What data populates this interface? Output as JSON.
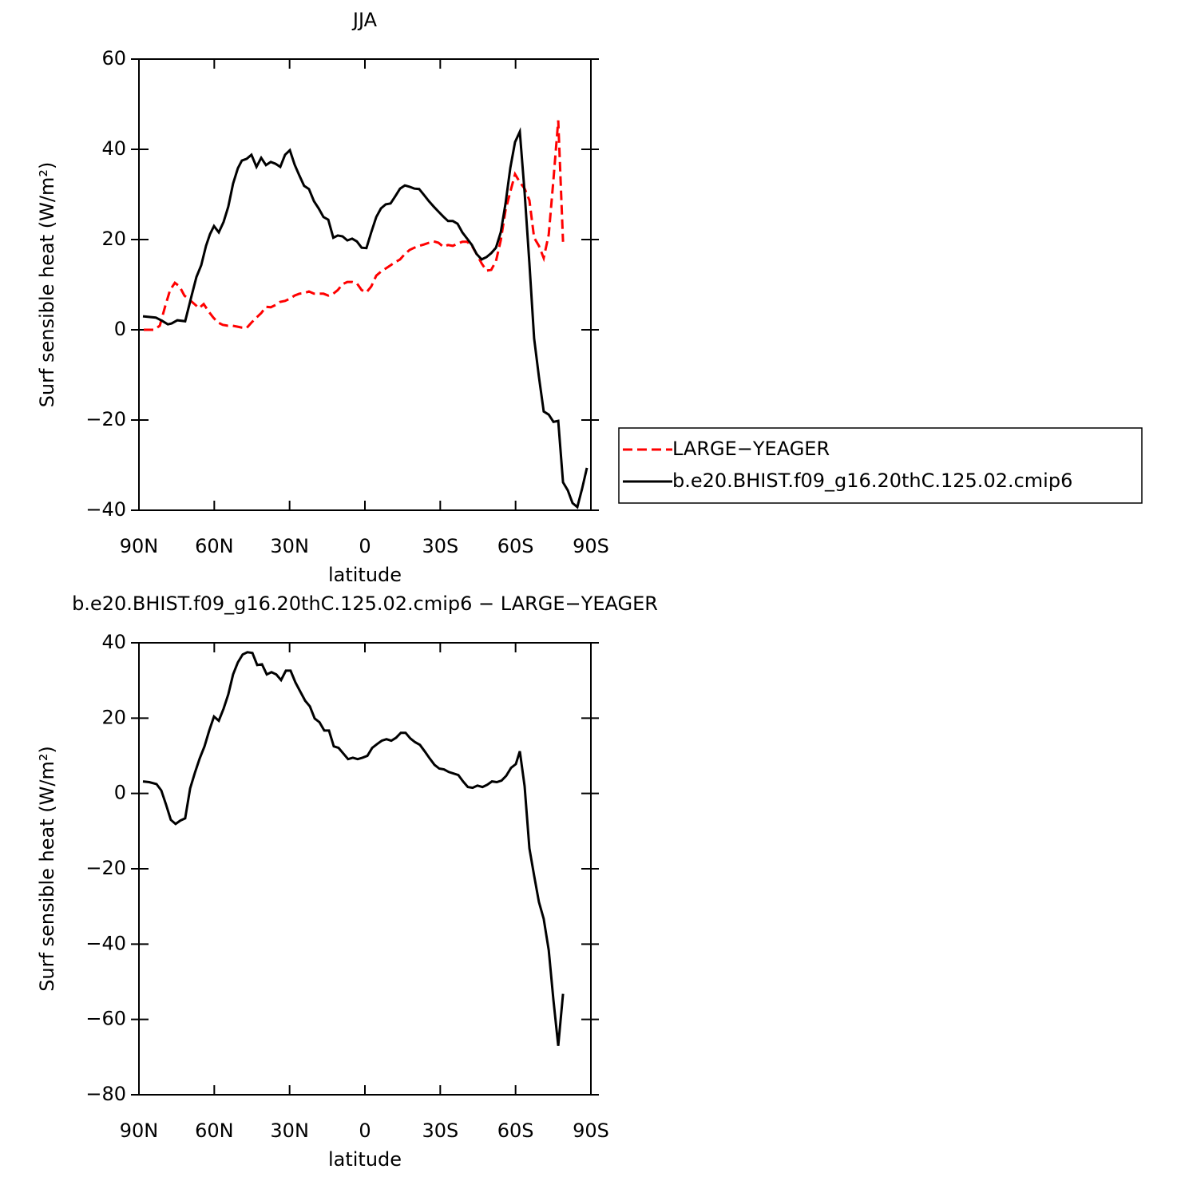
{
  "chart_data": [
    {
      "type": "line",
      "title": "JJA",
      "x_label": "latitude",
      "y_label": "Surf sensible heat (W/m²)",
      "xlim": [
        90,
        -90
      ],
      "ylim": [
        -40,
        60
      ],
      "xticks": [
        {
          "value": 90,
          "label": "90N"
        },
        {
          "value": 60,
          "label": "60N"
        },
        {
          "value": 30,
          "label": "30N"
        },
        0,
        {
          "value": -30,
          "label": "30S"
        },
        {
          "value": -60,
          "label": "60S"
        },
        {
          "value": -90,
          "label": "90S"
        }
      ],
      "yticks": [
        {
          "value": -40,
          "label": "−40"
        },
        {
          "value": -20,
          "label": "−20"
        },
        0,
        20,
        40,
        60
      ],
      "legend": "right",
      "series": [
        {
          "name": "LARGE−YEAGER",
          "color": "#ff0000",
          "dash": true,
          "x": [
            88.1,
            84,
            81.7,
            79.5,
            77.6,
            75.7,
            73.8,
            71.9,
            70,
            68.1,
            66.1,
            64.2,
            62.3,
            60.4,
            58.5,
            56.6,
            54.7,
            52.8,
            50.9,
            49,
            47.1,
            45.2,
            43.2,
            41.3,
            39.4,
            37.5,
            35.6,
            33.7,
            31.8,
            29.9,
            28,
            26.1,
            24.2,
            22.3,
            20.3,
            18.4,
            16.5,
            14.6,
            12.6,
            10.8,
            8.9,
            7,
            5.1,
            3.2,
            1.3,
            -0.6,
            -2.5,
            -4.5,
            -6.4,
            -8.3,
            -10.2,
            -12.1,
            -14,
            -15.9,
            -17.8,
            -19.7,
            -21.6,
            -23.5,
            -25.5,
            -27.4,
            -29.3,
            -31.2,
            -33.1,
            -35,
            -36.9,
            -38.8,
            -40.7,
            -42.6,
            -44.5,
            -46.5,
            -48.4,
            -50.3,
            -52.2,
            -54.1,
            -56,
            -57.9,
            -59.8,
            -61.7,
            -63.6,
            -65.5,
            -67.4,
            -69.3,
            -71.2,
            -73.2,
            -75.1,
            -77,
            -78.9
          ],
          "values": [
            0,
            0,
            0.9,
            5.3,
            8.8,
            10.4,
            9.6,
            7.6,
            6.7,
            5.8,
            4.8,
            5.7,
            4.1,
            2.7,
            1.6,
            1.1,
            0.9,
            0.9,
            0.7,
            0.5,
            0.4,
            1.6,
            2.7,
            3.7,
            5.1,
            5,
            5.5,
            6.2,
            6.4,
            6.9,
            7.6,
            8,
            8.1,
            8.5,
            8,
            8,
            8,
            7.6,
            8,
            8.8,
            10.1,
            10.6,
            10.6,
            10.3,
            8.8,
            8.3,
            9.6,
            12,
            12.9,
            13.6,
            14.3,
            15,
            15.6,
            16.8,
            17.7,
            18.2,
            18.6,
            18.9,
            19.3,
            19.6,
            19.3,
            18.4,
            18.8,
            18.6,
            19.1,
            19.5,
            19.5,
            18.6,
            16.8,
            14.7,
            13.1,
            13.3,
            15.2,
            19.8,
            26.5,
            30.6,
            34.5,
            32.7,
            31.3,
            28.7,
            20.4,
            18.6,
            15.9,
            21.1,
            33.3,
            46.4,
            19.5
          ]
        },
        {
          "name": "b.e20.BHIST.f09_g16.20thC.125.02.cmip6",
          "color": "#000000",
          "dash": false,
          "x": [
            88.4,
            83.3,
            80.8,
            78.5,
            77,
            74.7,
            71.6,
            69,
            67.1,
            65.2,
            63.3,
            61.7,
            60.1,
            58.2,
            56.3,
            54.4,
            52.5,
            50.6,
            49,
            47.1,
            45.2,
            43.2,
            41.3,
            39.4,
            37.5,
            35.6,
            33.7,
            31.8,
            29.9,
            28,
            26.1,
            24.2,
            22.3,
            20.3,
            18.4,
            16.5,
            14.6,
            12.6,
            10.8,
            8.9,
            7,
            5.1,
            3.2,
            1.3,
            -0.6,
            -2.5,
            -4.5,
            -6.4,
            -8.3,
            -10.2,
            -12.1,
            -14,
            -15.9,
            -17.8,
            -19.7,
            -21.6,
            -23.5,
            -25.5,
            -27.4,
            -29.3,
            -31.2,
            -33.1,
            -35,
            -36.9,
            -38.8,
            -40.7,
            -42.6,
            -44.5,
            -46.5,
            -48.4,
            -50.3,
            -52.2,
            -54.1,
            -56,
            -57.9,
            -59.8,
            -61.7,
            -63.6,
            -65.5,
            -67.4,
            -69.3,
            -71.2,
            -73.2,
            -75.1,
            -77,
            -78.9,
            -80.8,
            -82.7,
            -84.6,
            -86.5,
            -88.4
          ],
          "values": [
            3,
            2.7,
            2,
            1.2,
            1.4,
            2.1,
            1.9,
            7.6,
            11.7,
            14.3,
            18.6,
            21.2,
            23,
            21.6,
            23.9,
            27.3,
            32.4,
            35.8,
            37.5,
            37.9,
            38.8,
            36.1,
            38.1,
            36.5,
            37.2,
            36.8,
            36.1,
            38.8,
            39.8,
            36.6,
            34.2,
            31.9,
            31.2,
            28.5,
            26.9,
            25,
            24.4,
            20.4,
            20.9,
            20.7,
            19.8,
            20.2,
            19.6,
            18.2,
            18.1,
            21.6,
            25,
            26.9,
            27.8,
            28,
            29.6,
            31.3,
            32,
            31.7,
            31.3,
            31.2,
            29.9,
            28.5,
            27.3,
            26.2,
            25.1,
            24.1,
            24.1,
            23.5,
            21.6,
            20.2,
            18.8,
            16.8,
            15.6,
            16.1,
            17,
            18.2,
            21.6,
            28,
            35.9,
            41.6,
            43.9,
            30.4,
            14.7,
            -1.9,
            -10.4,
            -18.1,
            -18.8,
            -20.4,
            -20.2,
            -33.8,
            -35.6,
            -38.4,
            -39.3,
            -35.2,
            -30.6
          ]
        }
      ]
    },
    {
      "type": "line",
      "title": "b.e20.BHIST.f09_g16.20thC.125.02.cmip6 − LARGE−YEAGER",
      "x_label": "latitude",
      "y_label": "Surf sensible heat (W/m²)",
      "xlim": [
        90,
        -90
      ],
      "ylim": [
        -80,
        40
      ],
      "xticks": [
        {
          "value": 90,
          "label": "90N"
        },
        {
          "value": 60,
          "label": "60N"
        },
        {
          "value": 30,
          "label": "30N"
        },
        0,
        {
          "value": -30,
          "label": "30S"
        },
        {
          "value": -60,
          "label": "60S"
        },
        {
          "value": -90,
          "label": "90S"
        }
      ],
      "yticks": [
        {
          "value": -80,
          "label": "−80"
        },
        {
          "value": -60,
          "label": "−60"
        },
        {
          "value": -40,
          "label": "−40"
        },
        {
          "value": -20,
          "label": "−20"
        },
        0,
        20,
        40
      ],
      "color": "#000000",
      "x": [
        88.4,
        85.9,
        83,
        81.1,
        79.2,
        77.3,
        75.4,
        73.5,
        71.6,
        69.6,
        67.7,
        65.8,
        63.9,
        62,
        60.1,
        58.2,
        56.3,
        54.4,
        52.5,
        50.6,
        48.7,
        46.8,
        44.8,
        42.9,
        41,
        39.1,
        37.2,
        35.3,
        33.4,
        31.5,
        29.6,
        27.7,
        25.8,
        23.8,
        21.9,
        20,
        18.1,
        16.2,
        14.3,
        12.4,
        10.5,
        8.6,
        6.7,
        4.8,
        2.9,
        1,
        -1,
        -2.9,
        -4.8,
        -6.7,
        -8.6,
        -10.5,
        -12.4,
        -14.3,
        -16.2,
        -18.1,
        -20,
        -21.9,
        -23.8,
        -25.8,
        -27.7,
        -29.6,
        -31.5,
        -33.4,
        -35.3,
        -37.2,
        -39.1,
        -41,
        -42.9,
        -44.8,
        -46.8,
        -48.7,
        -50.6,
        -52.5,
        -54.4,
        -56.3,
        -58.2,
        -60.1,
        -61.7,
        -63.6,
        -65.5,
        -67.4,
        -69.3,
        -71.2,
        -73.2,
        -75.1,
        -77,
        -78.9
      ],
      "values": [
        3.2,
        3,
        2.5,
        0.8,
        -3,
        -7,
        -8.1,
        -7.2,
        -6.6,
        1.3,
        5.5,
        9.3,
        12.5,
        16.7,
        20.4,
        19.3,
        22.5,
        26.3,
        31.6,
        34.8,
        36.9,
        37.5,
        37.3,
        34.1,
        34.3,
        31.6,
        32.2,
        31.6,
        30.1,
        32.6,
        32.6,
        29.5,
        27.1,
        24.6,
        23.1,
        19.9,
        18.9,
        16.7,
        16.7,
        12.5,
        12.1,
        10.6,
        9.1,
        9.5,
        9.1,
        9.5,
        10,
        12.1,
        13.1,
        14,
        14.4,
        14,
        14.8,
        16.1,
        16.1,
        14.6,
        13.6,
        12.9,
        11.2,
        9.3,
        7.6,
        6.6,
        6.4,
        5.7,
        5.3,
        4.9,
        3.2,
        1.7,
        1.5,
        2.1,
        1.7,
        2.3,
        3.2,
        3,
        3.4,
        4.7,
        6.8,
        7.8,
        11.2,
        1.9,
        -14.6,
        -21.8,
        -28.8,
        -33.3,
        -41.6,
        -54.9,
        -67,
        -53.2
      ]
    }
  ]
}
